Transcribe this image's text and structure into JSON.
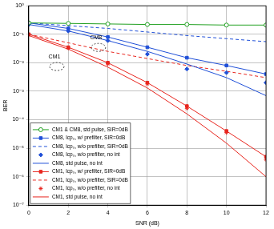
{
  "chart_data": {
    "type": "line",
    "x_label": "SNR (dB)",
    "y_label": "BER",
    "log": "y",
    "grid": true,
    "legend": "lower left",
    "x": [
      0,
      2,
      4,
      6,
      8,
      10,
      12
    ],
    "xlim": [
      0,
      12
    ],
    "xticks": [
      0,
      2,
      4,
      6,
      8,
      10,
      12
    ],
    "ylim": [
      1e-07,
      1
    ],
    "yticks": [
      {
        "value": 1e-07,
        "label": "10⁻⁷"
      },
      {
        "value": 1e-06,
        "label": "10⁻⁶"
      },
      {
        "value": 1e-05,
        "label": "10⁻⁵"
      },
      {
        "value": 0.0001,
        "label": "10⁻⁴"
      },
      {
        "value": 0.001,
        "label": "10⁻³"
      },
      {
        "value": 0.01,
        "label": "10⁻²"
      },
      {
        "value": 0.1,
        "label": "10⁻¹"
      },
      {
        "value": 1,
        "label": "10⁰"
      }
    ],
    "series": [
      {
        "name": "CM1 & CM8, std pulse, SIR=0dB",
        "color": "#22a022",
        "marker": "circle",
        "line_style": "solid",
        "values": [
          0.25,
          0.24,
          0.23,
          0.22,
          0.22,
          0.21,
          0.21
        ]
      },
      {
        "name": "CM8, lcp₀, w/ prefilter, SIR=0dB",
        "color": "#2050d8",
        "marker": "square",
        "line_style": "solid",
        "values": [
          0.25,
          0.16,
          0.08,
          0.035,
          0.015,
          0.008,
          0.004
        ]
      },
      {
        "name": "CM8, lcp₀, w/o prefilter, SIR=0dB",
        "color": "#2050d8",
        "marker": "none",
        "line_style": "dashed",
        "values": [
          0.25,
          0.2,
          0.16,
          0.12,
          0.09,
          0.07,
          0.055
        ]
      },
      {
        "name": "CM8, lcp₀, w/o prefilter, no int",
        "color": "#2050d8",
        "marker": "diamond",
        "line_style": "none",
        "values": [
          0.22,
          0.13,
          0.06,
          0.02,
          0.006,
          0.0045,
          0.002
        ]
      },
      {
        "name": "CM8, std pulse, no int",
        "color": "#2050d8",
        "marker": "none",
        "line_style": "solid",
        "values": [
          0.22,
          0.13,
          0.06,
          0.025,
          0.009,
          0.003,
          0.0007
        ]
      },
      {
        "name": "CM1, lcp₀, w/ prefilter, SIR=0dB",
        "color": "#e8261f",
        "marker": "square",
        "line_style": "solid",
        "values": [
          0.1,
          0.035,
          0.01,
          0.002,
          0.0003,
          4e-05,
          5e-06
        ]
      },
      {
        "name": "CM1, lcp₀, w/o prefilter, SIR=0dB",
        "color": "#e8261f",
        "marker": "none",
        "line_style": "dashed",
        "values": [
          0.1,
          0.05,
          0.025,
          0.014,
          0.008,
          0.005,
          0.003
        ]
      },
      {
        "name": "CM1, lcp₀, w/o prefilter, no int",
        "color": "#e8261f",
        "marker": "star",
        "line_style": "none",
        "values": [
          0.095,
          0.032,
          0.009,
          0.0018,
          0.00025,
          3.5e-05,
          4e-06
        ]
      },
      {
        "name": "CM1, std pulse, no int",
        "color": "#e8261f",
        "marker": "none",
        "line_style": "solid",
        "values": [
          0.09,
          0.03,
          0.007,
          0.0013,
          0.00016,
          1.5e-05,
          1e-06
        ]
      }
    ],
    "annotations": [
      {
        "text": "CM8",
        "x": 3.4,
        "y": 0.075
      },
      {
        "text": "CM1",
        "x": 1.3,
        "y": 0.016
      }
    ]
  }
}
